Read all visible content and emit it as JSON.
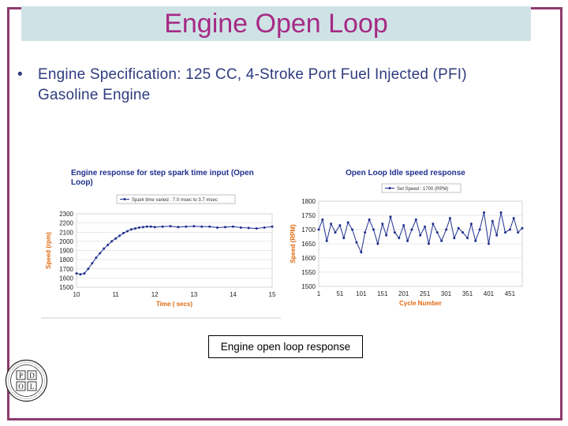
{
  "slide": {
    "title": "Engine  Open Loop",
    "bullet_marker": "•",
    "bullet_text": "Engine Specification: 125 CC, 4-Stroke Port Fuel Injected (PFI) Gasoline Engine",
    "caption": "Engine open loop response"
  },
  "colors": {
    "frame": "#8f3a6e",
    "title_band": "#cfe3e6",
    "title_text": "#a62a85",
    "bullet_text": "#2f3c7e",
    "series": "#1f2f8f",
    "chart_title": "#1f2f8f",
    "axis_label": "#e06a10"
  },
  "logo": {
    "letters": [
      "P",
      "D",
      "O",
      "L"
    ],
    "icon": "university-seal-icon"
  },
  "chart_data": [
    {
      "type": "line",
      "title": "Engine response for step spark time input (Open Loop)",
      "legend": "Spark time varied : 7.0 msec to 3.7 msec",
      "legend_position": "top",
      "xlabel": "Time ( secs)",
      "ylabel": "Speed (rpm)",
      "xlim": [
        10,
        15
      ],
      "ylim": [
        1500,
        2300
      ],
      "xticks": [
        "10",
        "11",
        "12",
        "13",
        "14",
        "15"
      ],
      "yticks": [
        "2300",
        "2200",
        "2100",
        "2000",
        "1900",
        "1800",
        "1700",
        "1600",
        "1500"
      ],
      "grid": "horizontal",
      "series": [
        {
          "name": "Spark time varied : 7.0 msec to 3.7 msec",
          "x": [
            10.0,
            10.1,
            10.2,
            10.3,
            10.4,
            10.5,
            10.6,
            10.7,
            10.8,
            10.9,
            11.0,
            11.1,
            11.2,
            11.3,
            11.4,
            11.5,
            11.6,
            11.7,
            11.8,
            11.9,
            12.0,
            12.2,
            12.4,
            12.6,
            12.8,
            13.0,
            13.2,
            13.4,
            13.6,
            13.8,
            14.0,
            14.2,
            14.4,
            14.6,
            14.8,
            15.0
          ],
          "y": [
            1650,
            1640,
            1650,
            1700,
            1760,
            1820,
            1870,
            1920,
            1960,
            2000,
            2030,
            2060,
            2090,
            2110,
            2130,
            2140,
            2150,
            2155,
            2160,
            2160,
            2155,
            2160,
            2165,
            2155,
            2160,
            2165,
            2160,
            2160,
            2150,
            2155,
            2160,
            2150,
            2145,
            2140,
            2150,
            2160
          ]
        }
      ]
    },
    {
      "type": "line",
      "title": "Open Loop Idle speed response",
      "legend": "Set Speed : 1700 (RPM)",
      "legend_position": "top",
      "xlabel": "Cycle Number",
      "ylabel": "Speed (RPM)",
      "xlim": [
        1,
        480
      ],
      "ylim": [
        1500,
        1800
      ],
      "xticks": [
        "1",
        "51",
        "101",
        "151",
        "201",
        "251",
        "301",
        "351",
        "401",
        "451"
      ],
      "yticks": [
        "1800",
        "1750",
        "1700",
        "1650",
        "1600",
        "1550",
        "1500"
      ],
      "grid": "horizontal",
      "series": [
        {
          "name": "Set Speed : 1700 (RPM)",
          "x": [
            1,
            10,
            20,
            30,
            40,
            51,
            60,
            70,
            80,
            90,
            101,
            110,
            120,
            130,
            140,
            151,
            160,
            170,
            180,
            190,
            201,
            210,
            220,
            230,
            240,
            251,
            260,
            270,
            280,
            290,
            301,
            310,
            320,
            330,
            340,
            351,
            360,
            370,
            380,
            390,
            401,
            410,
            420,
            430,
            440,
            451,
            460,
            470,
            480
          ],
          "y": [
            1700,
            1735,
            1660,
            1720,
            1690,
            1715,
            1670,
            1725,
            1700,
            1655,
            1620,
            1690,
            1735,
            1700,
            1650,
            1720,
            1680,
            1745,
            1690,
            1670,
            1715,
            1660,
            1700,
            1735,
            1680,
            1710,
            1650,
            1720,
            1690,
            1660,
            1700,
            1740,
            1670,
            1705,
            1690,
            1670,
            1720,
            1660,
            1700,
            1760,
            1650,
            1730,
            1680,
            1760,
            1690,
            1700,
            1740,
            1690,
            1705
          ]
        }
      ]
    }
  ]
}
